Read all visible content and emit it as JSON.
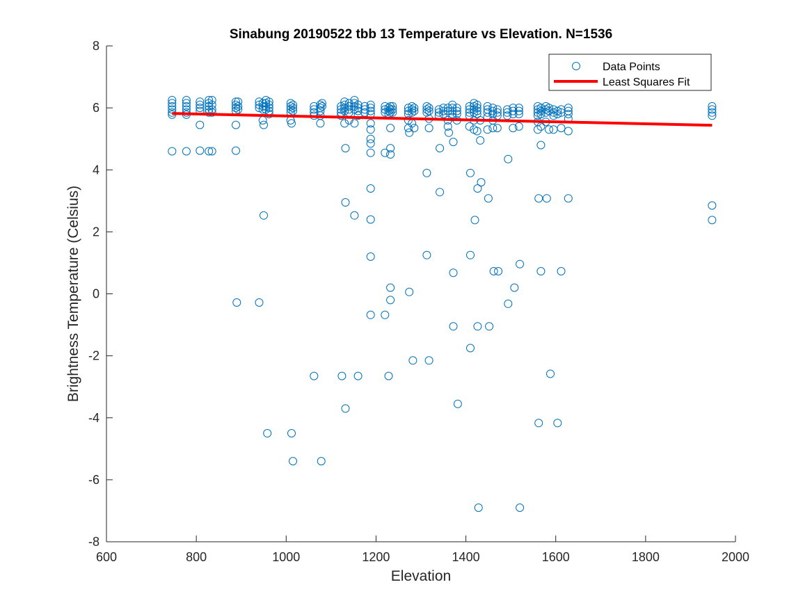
{
  "chart_data": {
    "type": "scatter",
    "title": "Sinabung 20190522 tbb 13 Temperature vs Elevation. N=1536",
    "xlabel": "Elevation",
    "ylabel": "Brightness Temperature (Celsius)",
    "xlim": [
      600,
      2000
    ],
    "ylim": [
      -8,
      8
    ],
    "xticks": [
      600,
      800,
      1000,
      1200,
      1400,
      1600,
      1800,
      2000
    ],
    "yticks": [
      8,
      6,
      4,
      2,
      0,
      -2,
      -4,
      -6,
      -8
    ],
    "grid": false,
    "legend_position": "top-right",
    "colors": {
      "points": "#0072BD",
      "fit": "#FF0000",
      "axes": "#262626"
    },
    "series": [
      {
        "name": "Data Points",
        "marker": "open-circle",
        "points": [
          [
            746,
            6.25
          ],
          [
            746,
            6.15
          ],
          [
            746,
            6.05
          ],
          [
            746,
            5.95
          ],
          [
            746,
            5.85
          ],
          [
            746,
            5.78
          ],
          [
            746,
            4.6
          ],
          [
            778,
            6.25
          ],
          [
            778,
            6.15
          ],
          [
            778,
            6.05
          ],
          [
            778,
            5.95
          ],
          [
            778,
            5.85
          ],
          [
            778,
            5.78
          ],
          [
            778,
            4.6
          ],
          [
            808,
            6.2
          ],
          [
            808,
            6.1
          ],
          [
            808,
            6.0
          ],
          [
            808,
            5.9
          ],
          [
            808,
            5.45
          ],
          [
            808,
            4.62
          ],
          [
            828,
            6.25
          ],
          [
            828,
            6.15
          ],
          [
            828,
            6.05
          ],
          [
            828,
            5.95
          ],
          [
            828,
            5.85
          ],
          [
            828,
            4.6
          ],
          [
            835,
            6.25
          ],
          [
            835,
            6.1
          ],
          [
            835,
            5.95
          ],
          [
            835,
            5.85
          ],
          [
            835,
            4.6
          ],
          [
            888,
            6.2
          ],
          [
            888,
            6.1
          ],
          [
            888,
            6.0
          ],
          [
            888,
            5.9
          ],
          [
            888,
            5.45
          ],
          [
            888,
            4.62
          ],
          [
            890,
            -0.28
          ],
          [
            893,
            6.2
          ],
          [
            893,
            6.05
          ],
          [
            893,
            5.95
          ],
          [
            940,
            6.2
          ],
          [
            940,
            6.1
          ],
          [
            940,
            6.0
          ],
          [
            940,
            -0.28
          ],
          [
            948,
            6.15
          ],
          [
            948,
            6.05
          ],
          [
            948,
            5.95
          ],
          [
            948,
            5.6
          ],
          [
            950,
            5.45
          ],
          [
            950,
            2.53
          ],
          [
            955,
            6.25
          ],
          [
            955,
            6.15
          ],
          [
            955,
            6.05
          ],
          [
            955,
            5.95
          ],
          [
            958,
            -4.5
          ],
          [
            962,
            6.2
          ],
          [
            962,
            6.1
          ],
          [
            962,
            6.0
          ],
          [
            962,
            5.9
          ],
          [
            962,
            5.8
          ],
          [
            1010,
            6.15
          ],
          [
            1010,
            6.05
          ],
          [
            1010,
            5.95
          ],
          [
            1010,
            5.85
          ],
          [
            1010,
            5.6
          ],
          [
            1012,
            5.5
          ],
          [
            1012,
            -4.5
          ],
          [
            1015,
            -5.4
          ],
          [
            1015,
            6.1
          ],
          [
            1015,
            6.0
          ],
          [
            1015,
            5.9
          ],
          [
            1062,
            6.05
          ],
          [
            1062,
            5.95
          ],
          [
            1062,
            5.85
          ],
          [
            1062,
            5.75
          ],
          [
            1062,
            -2.65
          ],
          [
            1076,
            6.1
          ],
          [
            1076,
            6.0
          ],
          [
            1076,
            5.9
          ],
          [
            1076,
            5.75
          ],
          [
            1076,
            5.5
          ],
          [
            1078,
            -5.4
          ],
          [
            1080,
            6.15
          ],
          [
            1080,
            6.05
          ],
          [
            1122,
            6.05
          ],
          [
            1122,
            5.95
          ],
          [
            1122,
            5.85
          ],
          [
            1122,
            5.75
          ],
          [
            1124,
            -2.65
          ],
          [
            1130,
            6.2
          ],
          [
            1130,
            6.1
          ],
          [
            1130,
            6.0
          ],
          [
            1130,
            5.9
          ],
          [
            1130,
            5.5
          ],
          [
            1132,
            4.7
          ],
          [
            1132,
            2.95
          ],
          [
            1132,
            -3.7
          ],
          [
            1140,
            6.15
          ],
          [
            1140,
            6.05
          ],
          [
            1140,
            5.95
          ],
          [
            1140,
            5.85
          ],
          [
            1140,
            5.6
          ],
          [
            1152,
            6.25
          ],
          [
            1152,
            6.15
          ],
          [
            1152,
            6.05
          ],
          [
            1152,
            5.95
          ],
          [
            1152,
            5.5
          ],
          [
            1152,
            2.53
          ],
          [
            1160,
            6.1
          ],
          [
            1160,
            6.0
          ],
          [
            1160,
            5.9
          ],
          [
            1160,
            5.75
          ],
          [
            1160,
            -2.65
          ],
          [
            1175,
            6.05
          ],
          [
            1175,
            5.95
          ],
          [
            1175,
            5.85
          ],
          [
            1188,
            6.1
          ],
          [
            1188,
            6.0
          ],
          [
            1188,
            5.9
          ],
          [
            1188,
            5.8
          ],
          [
            1188,
            5.5
          ],
          [
            1188,
            5.3
          ],
          [
            1188,
            5.0
          ],
          [
            1188,
            4.85
          ],
          [
            1188,
            4.55
          ],
          [
            1188,
            3.4
          ],
          [
            1188,
            2.4
          ],
          [
            1188,
            1.2
          ],
          [
            1188,
            -0.68
          ],
          [
            1220,
            6.05
          ],
          [
            1220,
            5.95
          ],
          [
            1220,
            5.85
          ],
          [
            1220,
            4.55
          ],
          [
            1220,
            -0.68
          ],
          [
            1228,
            6.0
          ],
          [
            1228,
            5.9
          ],
          [
            1228,
            5.8
          ],
          [
            1228,
            -2.65
          ],
          [
            1232,
            6.05
          ],
          [
            1232,
            5.95
          ],
          [
            1232,
            5.85
          ],
          [
            1232,
            5.35
          ],
          [
            1232,
            4.7
          ],
          [
            1232,
            4.5
          ],
          [
            1232,
            0.2
          ],
          [
            1232,
            -0.2
          ],
          [
            1237,
            6.05
          ],
          [
            1237,
            5.95
          ],
          [
            1237,
            5.85
          ],
          [
            1272,
            6.0
          ],
          [
            1272,
            5.9
          ],
          [
            1272,
            5.8
          ],
          [
            1272,
            5.6
          ],
          [
            1272,
            5.35
          ],
          [
            1274,
            5.2
          ],
          [
            1274,
            0.06
          ],
          [
            1280,
            6.05
          ],
          [
            1280,
            5.95
          ],
          [
            1280,
            5.85
          ],
          [
            1280,
            5.5
          ],
          [
            1282,
            -2.15
          ],
          [
            1285,
            6.0
          ],
          [
            1285,
            5.9
          ],
          [
            1285,
            5.35
          ],
          [
            1313,
            6.05
          ],
          [
            1313,
            5.95
          ],
          [
            1313,
            5.85
          ],
          [
            1313,
            3.9
          ],
          [
            1313,
            1.25
          ],
          [
            1318,
            6.0
          ],
          [
            1318,
            5.9
          ],
          [
            1318,
            5.65
          ],
          [
            1318,
            5.35
          ],
          [
            1318,
            -2.15
          ],
          [
            1340,
            5.95
          ],
          [
            1340,
            5.85
          ],
          [
            1340,
            5.75
          ],
          [
            1342,
            4.7
          ],
          [
            1342,
            3.28
          ],
          [
            1350,
            6.0
          ],
          [
            1350,
            5.9
          ],
          [
            1350,
            5.8
          ],
          [
            1360,
            6.0
          ],
          [
            1360,
            5.9
          ],
          [
            1360,
            5.6
          ],
          [
            1360,
            5.4
          ],
          [
            1362,
            5.2
          ],
          [
            1370,
            6.1
          ],
          [
            1370,
            6.0
          ],
          [
            1370,
            5.9
          ],
          [
            1370,
            5.8
          ],
          [
            1370,
            5.7
          ],
          [
            1372,
            4.9
          ],
          [
            1372,
            0.68
          ],
          [
            1372,
            -1.05
          ],
          [
            1380,
            6.0
          ],
          [
            1380,
            5.9
          ],
          [
            1380,
            5.8
          ],
          [
            1380,
            5.6
          ],
          [
            1382,
            -3.55
          ],
          [
            1408,
            6.05
          ],
          [
            1408,
            5.95
          ],
          [
            1408,
            5.85
          ],
          [
            1408,
            5.75
          ],
          [
            1408,
            5.4
          ],
          [
            1410,
            3.9
          ],
          [
            1410,
            1.25
          ],
          [
            1410,
            -1.75
          ],
          [
            1418,
            6.15
          ],
          [
            1418,
            6.05
          ],
          [
            1418,
            5.95
          ],
          [
            1418,
            5.85
          ],
          [
            1418,
            5.6
          ],
          [
            1418,
            5.3
          ],
          [
            1420,
            2.38
          ],
          [
            1425,
            6.1
          ],
          [
            1425,
            6.0
          ],
          [
            1425,
            5.9
          ],
          [
            1425,
            5.8
          ],
          [
            1425,
            5.25
          ],
          [
            1426,
            3.4
          ],
          [
            1426,
            -1.05
          ],
          [
            1428,
            -6.9
          ],
          [
            1432,
            5.6
          ],
          [
            1432,
            4.95
          ],
          [
            1434,
            3.6
          ],
          [
            1448,
            6.05
          ],
          [
            1448,
            5.95
          ],
          [
            1448,
            5.85
          ],
          [
            1448,
            5.7
          ],
          [
            1448,
            5.3
          ],
          [
            1450,
            3.08
          ],
          [
            1452,
            -1.05
          ],
          [
            1460,
            6.0
          ],
          [
            1460,
            5.9
          ],
          [
            1460,
            5.8
          ],
          [
            1460,
            5.6
          ],
          [
            1460,
            5.35
          ],
          [
            1462,
            0.73
          ],
          [
            1470,
            5.95
          ],
          [
            1470,
            5.85
          ],
          [
            1470,
            5.75
          ],
          [
            1470,
            5.35
          ],
          [
            1472,
            0.73
          ],
          [
            1492,
            5.95
          ],
          [
            1492,
            5.85
          ],
          [
            1492,
            5.75
          ],
          [
            1494,
            4.35
          ],
          [
            1494,
            -0.32
          ],
          [
            1505,
            6.0
          ],
          [
            1505,
            5.9
          ],
          [
            1505,
            5.8
          ],
          [
            1505,
            5.35
          ],
          [
            1508,
            0.2
          ],
          [
            1518,
            6.0
          ],
          [
            1518,
            5.9
          ],
          [
            1518,
            5.8
          ],
          [
            1518,
            5.4
          ],
          [
            1520,
            0.96
          ],
          [
            1520,
            -6.9
          ],
          [
            1560,
            6.05
          ],
          [
            1560,
            5.95
          ],
          [
            1560,
            5.85
          ],
          [
            1560,
            5.75
          ],
          [
            1560,
            5.55
          ],
          [
            1560,
            5.3
          ],
          [
            1562,
            3.08
          ],
          [
            1562,
            -4.17
          ],
          [
            1567,
            6.0
          ],
          [
            1567,
            5.9
          ],
          [
            1567,
            5.8
          ],
          [
            1567,
            5.4
          ],
          [
            1567,
            4.8
          ],
          [
            1567,
            0.73
          ],
          [
            1578,
            6.05
          ],
          [
            1578,
            5.95
          ],
          [
            1578,
            5.85
          ],
          [
            1578,
            5.55
          ],
          [
            1580,
            3.08
          ],
          [
            1585,
            6.0
          ],
          [
            1585,
            5.9
          ],
          [
            1585,
            5.3
          ],
          [
            1588,
            -2.58
          ],
          [
            1595,
            5.95
          ],
          [
            1595,
            5.85
          ],
          [
            1595,
            5.75
          ],
          [
            1595,
            5.3
          ],
          [
            1604,
            5.9
          ],
          [
            1604,
            5.8
          ],
          [
            1604,
            -4.17
          ],
          [
            1612,
            5.95
          ],
          [
            1612,
            5.85
          ],
          [
            1612,
            5.35
          ],
          [
            1612,
            0.73
          ],
          [
            1628,
            6.0
          ],
          [
            1628,
            5.9
          ],
          [
            1628,
            5.8
          ],
          [
            1628,
            5.65
          ],
          [
            1628,
            5.25
          ],
          [
            1628,
            3.08
          ],
          [
            1948,
            6.05
          ],
          [
            1948,
            5.95
          ],
          [
            1948,
            5.85
          ],
          [
            1948,
            5.75
          ],
          [
            1948,
            2.85
          ],
          [
            1948,
            2.38
          ]
        ]
      },
      {
        "name": "Least Squares Fit",
        "line": [
          [
            746,
            5.82
          ],
          [
            1948,
            5.44
          ]
        ]
      }
    ]
  }
}
